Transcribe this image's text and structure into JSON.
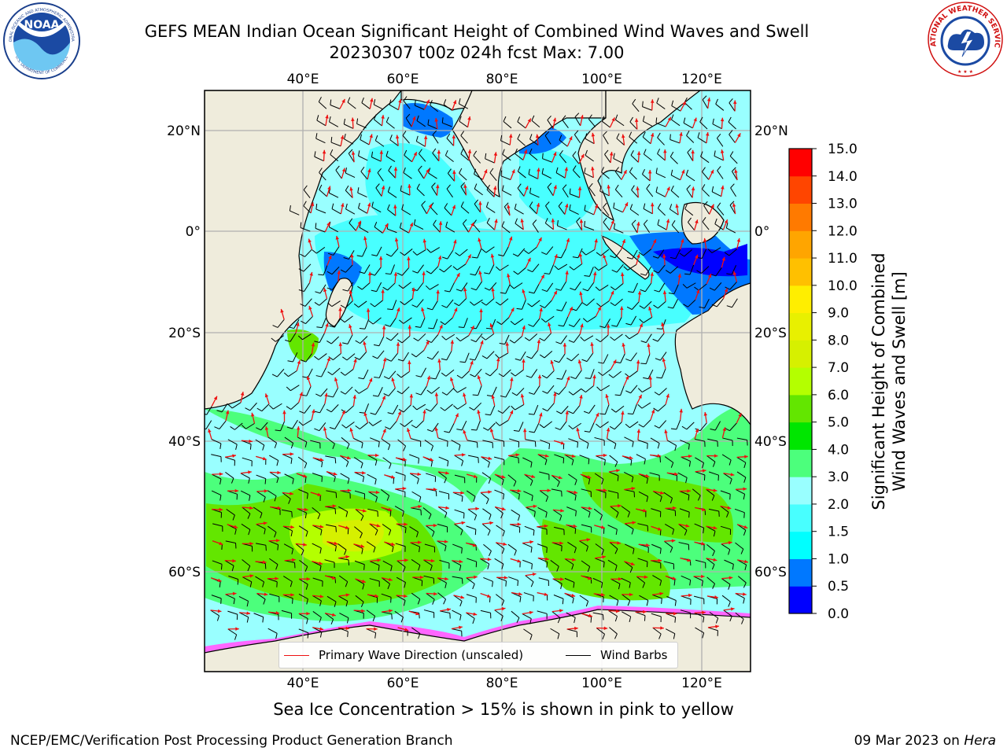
{
  "title": {
    "line1": "GEFS MEAN Indian Ocean Significant Height of Combined Wind Waves and Swell",
    "line2": "20230307 t00z 024h fcst   Max: 7.00"
  },
  "map": {
    "lon_ticks_top": [
      "40°E",
      "60°E",
      "80°E",
      "100°E",
      "120°E"
    ],
    "lon_ticks_bottom": [
      "40°E",
      "60°E",
      "80°E",
      "100°E",
      "120°E"
    ],
    "lat_ticks_left": [
      "20°N",
      "0°",
      "20°S",
      "40°S",
      "60°S"
    ],
    "lat_ticks_right": [
      "20°N",
      "0°",
      "20°S",
      "40°S",
      "60°S"
    ],
    "lon_values": [
      40,
      60,
      80,
      100,
      120
    ],
    "lat_values": [
      20,
      0,
      -20,
      -40,
      -60
    ],
    "lon_range": [
      20,
      130
    ],
    "lat_range": [
      -75,
      27
    ],
    "land_color": "#efecdc",
    "ocean_base_color": "#99ffff",
    "wave_arrow_color": "#ee1111",
    "wind_barb_color": "#000000"
  },
  "legend": {
    "wave_label": "Primary Wave Direction (unscaled)",
    "wind_label": "Wind Barbs"
  },
  "colorbar": {
    "label": "Significant Height of Combined Wind Waves and Swell [m]",
    "label_line1": "Significant Height of Combined",
    "label_line2": "Wind Waves and Swell [m]",
    "ticks": [
      "0.0",
      "0.5",
      "1.0",
      "1.5",
      "2.0",
      "3.0",
      "4.0",
      "5.0",
      "6.0",
      "7.0",
      "8.0",
      "9.0",
      "10.0",
      "11.0",
      "12.0",
      "13.0",
      "14.0",
      "15.0"
    ],
    "colors": [
      "#0000ff",
      "#0078ff",
      "#00ffff",
      "#48ffff",
      "#99ffff",
      "#4cff7c",
      "#00e600",
      "#63e600",
      "#b4ff00",
      "#d6f000",
      "#e8f000",
      "#ffee00",
      "#ffc000",
      "#ffa500",
      "#ff7a00",
      "#ff4500",
      "#ff0000"
    ]
  },
  "note": "Sea Ice Concentration > 15% is shown in pink to yellow",
  "footer": {
    "left": "NCEP/EMC/Verification Post Processing Product Generation Branch",
    "right_prefix": "09 Mar 2023 on ",
    "right_host": "Hera"
  },
  "logos": {
    "noaa_text": "NOAA",
    "noaa_ring_top": "NATIONAL OCEANIC AND ATMOSPHERIC ADMINISTRATION",
    "noaa_ring_bottom": "U.S. DEPARTMENT OF COMMERCE",
    "nws_ring": "NATIONAL WEATHER SERVICE"
  }
}
